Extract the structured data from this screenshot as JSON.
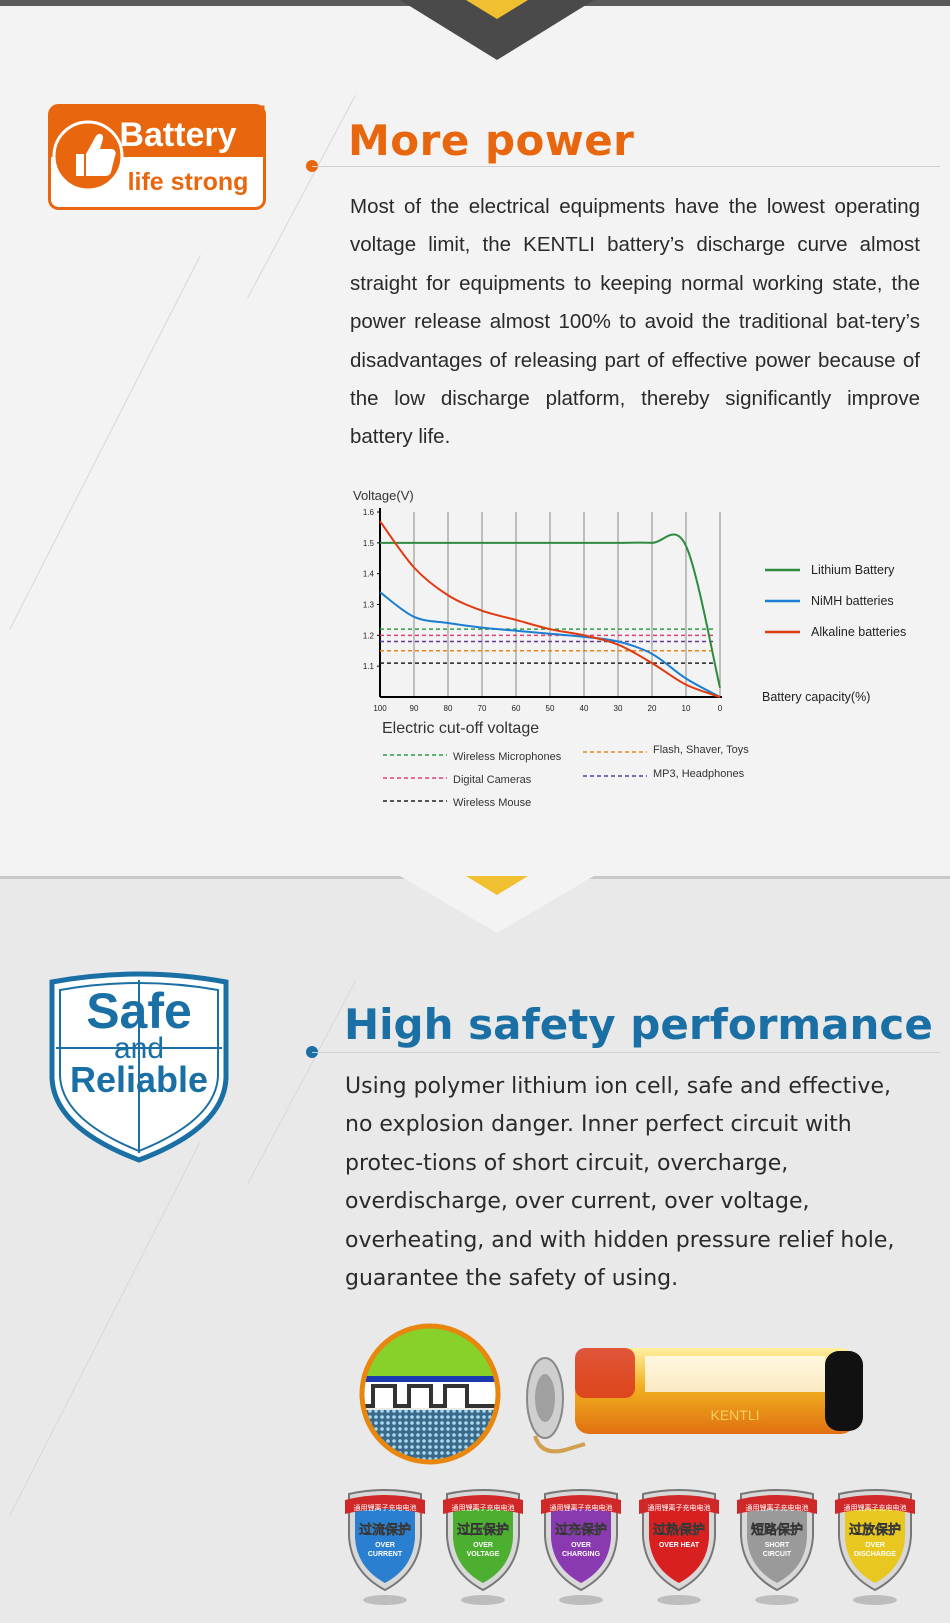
{
  "section1": {
    "badge": {
      "line1": "Battery",
      "line2": "life strong",
      "icon": "thumbs-up-icon"
    },
    "title": "More power",
    "paragraph": "Most of the electrical equipments have the lowest operating voltage limit, the KENTLI battery’s discharge curve almost straight for equipments to keeping normal working state, the power release almost 100% to avoid the traditional bat-tery’s disadvantages of releasing part of effective power because of the low discharge platform, thereby significantly improve battery life."
  },
  "chart_data": {
    "type": "line",
    "ylabel": "Voltage(V)",
    "xlabel": "Battery capacity(%)",
    "x": [
      100,
      90,
      80,
      70,
      60,
      50,
      40,
      30,
      20,
      10,
      0
    ],
    "ylim": [
      1.0,
      1.6
    ],
    "xlim": [
      100,
      0
    ],
    "y_ticks": [
      "1.6",
      "1.5",
      "1.4",
      "1.3",
      "1.2",
      "1.1"
    ],
    "x_ticks": [
      "100",
      "90",
      "80",
      "70",
      "60",
      "50",
      "40",
      "30",
      "20",
      "10",
      "0"
    ],
    "series": [
      {
        "name": "Lithium Battery",
        "color": "#2e8b3e",
        "values": [
          1.5,
          1.5,
          1.5,
          1.5,
          1.5,
          1.5,
          1.5,
          1.5,
          1.5,
          1.49,
          1.03
        ]
      },
      {
        "name": "NiMH batteries",
        "color": "#1a7fd0",
        "values": [
          1.34,
          1.26,
          1.24,
          1.225,
          1.215,
          1.205,
          1.195,
          1.18,
          1.14,
          1.06,
          1.0
        ]
      },
      {
        "name": "Alkaline batteries",
        "color": "#e03a10",
        "values": [
          1.57,
          1.42,
          1.33,
          1.28,
          1.25,
          1.22,
          1.2,
          1.17,
          1.11,
          1.04,
          1.0
        ]
      }
    ],
    "cutoff_title": "Electric cut-off voltage",
    "cutoffs": [
      {
        "name": "Wireless Microphones",
        "value": 1.22,
        "color": "#2e9e46"
      },
      {
        "name": "Flash, Shaver, Toys",
        "value": 1.15,
        "color": "#e8861e"
      },
      {
        "name": "Digital Cameras",
        "value": 1.2,
        "color": "#e0407a"
      },
      {
        "name": "MP3, Headphones",
        "value": 1.18,
        "color": "#5a3a9a"
      },
      {
        "name": "Wireless Mouse",
        "value": 1.11,
        "color": "#222222"
      }
    ],
    "grid": true,
    "legend": "right"
  },
  "section2": {
    "badge": {
      "line1": "Safe",
      "line2": "and",
      "line3": "Reliable"
    },
    "title": "High safety performance",
    "paragraph": "Using polymer lithium ion cell, safe and effective, no explosion danger. Inner perfect circuit with protec-tions of short circuit, overcharge, overdischarge, over current, over voltage, overheating, and with hidden pressure relief hole, guarantee the safety of using.",
    "cell_brand": "KENTLI",
    "shields": [
      {
        "top": "通用锂离子充电电池",
        "cn": "过流保护",
        "en1": "OVER",
        "en2": "CURRENT",
        "color": "#2a7fd0"
      },
      {
        "top": "通用锂离子充电电池",
        "cn": "过压保护",
        "en1": "OVER",
        "en2": "VOLTAGE",
        "color": "#4caf30"
      },
      {
        "top": "通用锂离子充电电池",
        "cn": "过充保护",
        "en1": "OVER",
        "en2": "CHARGING",
        "color": "#8a3ab0"
      },
      {
        "top": "通用锂离子充电电池",
        "cn": "过热保护",
        "en1": "OVER HEAT",
        "en2": "",
        "color": "#d82020"
      },
      {
        "top": "通用锂离子充电电池",
        "cn": "短路保护",
        "en1": "SHORT",
        "en2": "CIRCUIT",
        "color": "#9a9a9a"
      },
      {
        "top": "通用锂离子充电电池",
        "cn": "过放保护",
        "en1": "OVER",
        "en2": "DISCHARGE",
        "color": "#e8c820"
      }
    ]
  }
}
